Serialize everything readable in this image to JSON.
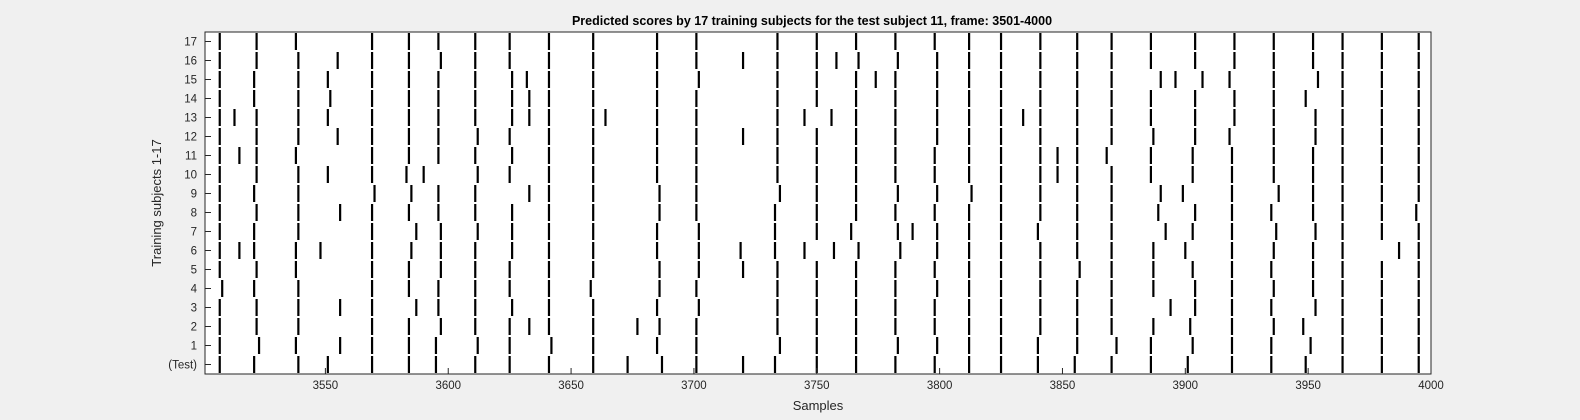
{
  "chart_data": {
    "type": "raster",
    "title": "Predicted scores by 17 training subjects for the test subject 11, frame: 3501-4000",
    "xlabel": "Samples",
    "ylabel": "Training subjects 1-17",
    "xlim": [
      3501,
      4000
    ],
    "xticks": [
      3550,
      3600,
      3650,
      3700,
      3750,
      3800,
      3850,
      3900,
      3950,
      4000
    ],
    "rows": [
      "(Test)",
      "1",
      "2",
      "3",
      "4",
      "5",
      "6",
      "7",
      "8",
      "9",
      "10",
      "11",
      "12",
      "13",
      "14",
      "15",
      "16",
      "17"
    ],
    "grid": false,
    "mark_color": "#000000",
    "events": [
      [
        3507,
        3521,
        3539,
        3551,
        3569,
        3584,
        3595,
        3611,
        3625,
        3641,
        3659,
        3673,
        3687,
        3701,
        3720,
        3733,
        3750,
        3766,
        3782,
        3798,
        3812,
        3825,
        3840,
        3855,
        3870,
        3886,
        3901,
        3919,
        3935,
        3949,
        3964,
        3980,
        3995
      ],
      [
        3507,
        3523,
        3538,
        3556,
        3569,
        3584,
        3595,
        3612,
        3625,
        3642,
        3659,
        3685,
        3701,
        3735,
        3750,
        3766,
        3783,
        3799,
        3812,
        3825,
        3840,
        3856,
        3872,
        3886,
        3903,
        3919,
        3935,
        3951,
        3964,
        3980,
        3995
      ],
      [
        3507,
        3522,
        3539,
        3569,
        3584,
        3597,
        3611,
        3625,
        3633,
        3641,
        3659,
        3677,
        3686,
        3701,
        3734,
        3750,
        3766,
        3782,
        3798,
        3812,
        3825,
        3841,
        3856,
        3870,
        3887,
        3902,
        3919,
        3936,
        3948,
        3964,
        3980,
        3995
      ],
      [
        3507,
        3522,
        3539,
        3556,
        3569,
        3587,
        3596,
        3611,
        3626,
        3641,
        3659,
        3685,
        3702,
        3734,
        3750,
        3766,
        3782,
        3798,
        3812,
        3825,
        3841,
        3856,
        3870,
        3894,
        3904,
        3919,
        3935,
        3953,
        3964,
        3980,
        3995
      ],
      [
        3508,
        3521,
        3539,
        3569,
        3584,
        3596,
        3611,
        3625,
        3641,
        3658,
        3686,
        3701,
        3734,
        3750,
        3766,
        3782,
        3799,
        3812,
        3825,
        3841,
        3856,
        3870,
        3887,
        3904,
        3919,
        3936,
        3952,
        3964,
        3980,
        3995
      ],
      [
        3507,
        3522,
        3538,
        3569,
        3584,
        3597,
        3611,
        3625,
        3641,
        3659,
        3686,
        3702,
        3720,
        3734,
        3750,
        3766,
        3782,
        3798,
        3812,
        3825,
        3841,
        3857,
        3870,
        3887,
        3903,
        3919,
        3935,
        3952,
        3964,
        3980,
        3995
      ],
      [
        3507,
        3515,
        3521,
        3538,
        3548,
        3569,
        3585,
        3597,
        3611,
        3626,
        3641,
        3659,
        3685,
        3702,
        3719,
        3733,
        3745,
        3757,
        3767,
        3784,
        3799,
        3812,
        3825,
        3841,
        3856,
        3870,
        3887,
        3900,
        3919,
        3936,
        3952,
        3964,
        3987,
        3995
      ],
      [
        3507,
        3521,
        3539,
        3569,
        3587,
        3597,
        3612,
        3626,
        3641,
        3659,
        3685,
        3702,
        3733,
        3750,
        3764,
        3783,
        3789,
        3799,
        3812,
        3825,
        3840,
        3856,
        3870,
        3892,
        3903,
        3919,
        3937,
        3953,
        3964,
        3980,
        3995
      ],
      [
        3507,
        3522,
        3539,
        3556,
        3569,
        3584,
        3596,
        3611,
        3626,
        3641,
        3659,
        3686,
        3701,
        3733,
        3750,
        3766,
        3782,
        3798,
        3812,
        3825,
        3841,
        3856,
        3870,
        3889,
        3904,
        3919,
        3935,
        3952,
        3964,
        3980,
        3994
      ],
      [
        3507,
        3521,
        3539,
        3570,
        3585,
        3596,
        3611,
        3633,
        3641,
        3659,
        3686,
        3701,
        3735,
        3750,
        3766,
        3783,
        3799,
        3813,
        3825,
        3841,
        3856,
        3870,
        3890,
        3899,
        3919,
        3938,
        3952,
        3964,
        3980,
        3995
      ],
      [
        3507,
        3522,
        3539,
        3551,
        3569,
        3583,
        3590,
        3612,
        3625,
        3641,
        3659,
        3685,
        3701,
        3734,
        3750,
        3766,
        3782,
        3798,
        3812,
        3825,
        3841,
        3848,
        3856,
        3870,
        3886,
        3903,
        3919,
        3936,
        3952,
        3964,
        3980,
        3995
      ],
      [
        3507,
        3515,
        3522,
        3538,
        3569,
        3584,
        3596,
        3611,
        3626,
        3641,
        3659,
        3685,
        3701,
        3734,
        3750,
        3766,
        3782,
        3798,
        3812,
        3825,
        3841,
        3848,
        3856,
        3868,
        3886,
        3903,
        3919,
        3936,
        3952,
        3964,
        3980,
        3995
      ],
      [
        3507,
        3522,
        3539,
        3555,
        3569,
        3584,
        3596,
        3612,
        3625,
        3641,
        3659,
        3685,
        3701,
        3720,
        3734,
        3750,
        3766,
        3782,
        3799,
        3812,
        3825,
        3841,
        3856,
        3870,
        3887,
        3904,
        3918,
        3936,
        3953,
        3964,
        3980,
        3995
      ],
      [
        3507,
        3513,
        3522,
        3539,
        3551,
        3569,
        3584,
        3596,
        3611,
        3626,
        3633,
        3641,
        3659,
        3664,
        3685,
        3701,
        3734,
        3745,
        3756,
        3766,
        3782,
        3799,
        3812,
        3825,
        3834,
        3841,
        3856,
        3870,
        3886,
        3904,
        3920,
        3936,
        3953,
        3964,
        3980,
        3995
      ],
      [
        3507,
        3521,
        3539,
        3552,
        3569,
        3584,
        3596,
        3611,
        3626,
        3633,
        3641,
        3659,
        3685,
        3701,
        3734,
        3750,
        3766,
        3782,
        3799,
        3812,
        3825,
        3841,
        3856,
        3870,
        3886,
        3904,
        3920,
        3936,
        3949,
        3964,
        3980,
        3995
      ],
      [
        3507,
        3521,
        3539,
        3551,
        3569,
        3584,
        3596,
        3611,
        3626,
        3632,
        3641,
        3659,
        3685,
        3702,
        3734,
        3750,
        3766,
        3774,
        3782,
        3799,
        3812,
        3825,
        3841,
        3856,
        3870,
        3890,
        3896,
        3907,
        3918,
        3936,
        3954,
        3964,
        3980,
        3995
      ],
      [
        3507,
        3522,
        3539,
        3555,
        3569,
        3584,
        3597,
        3611,
        3625,
        3641,
        3659,
        3685,
        3701,
        3720,
        3734,
        3750,
        3758,
        3767,
        3783,
        3799,
        3812,
        3825,
        3841,
        3856,
        3870,
        3886,
        3904,
        3920,
        3936,
        3952,
        3964,
        3980,
        3995
      ],
      [
        3507,
        3522,
        3538,
        3569,
        3584,
        3596,
        3611,
        3625,
        3641,
        3659,
        3685,
        3701,
        3734,
        3750,
        3766,
        3782,
        3798,
        3812,
        3825,
        3841,
        3856,
        3870,
        3886,
        3904,
        3920,
        3936,
        3952,
        3964,
        3980,
        3995
      ]
    ]
  }
}
